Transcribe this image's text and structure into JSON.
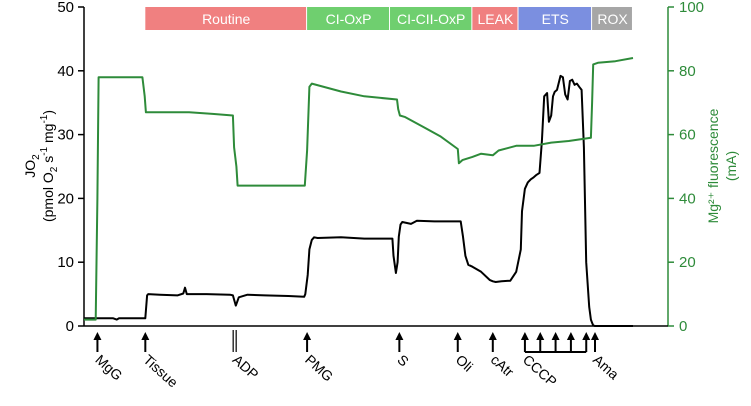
{
  "chart_data": {
    "type": "line",
    "colors": {
      "jo2": "#000000",
      "mg": "#2e8b3a",
      "left_axis": "#000000",
      "right_axis": "#2e8b3a"
    },
    "x_range": [
      0,
      100
    ],
    "left_axis": {
      "label_line1": "JO",
      "label_sub1": "2",
      "label_line2": "(pmol O",
      "label_sub2": "2",
      "label_line2b": " s",
      "label_sup1": "-1",
      "label_line2c": " mg",
      "label_sup2": "-1",
      "label_line2d": ")",
      "range": [
        0,
        50
      ],
      "ticks": [
        {
          "value": 0,
          "label": "0"
        },
        {
          "value": 10,
          "label": "10"
        },
        {
          "value": 20,
          "label": "20"
        },
        {
          "value": 30,
          "label": "30"
        },
        {
          "value": 40,
          "label": "40"
        },
        {
          "value": 50,
          "label": "50"
        }
      ]
    },
    "right_axis": {
      "label_line1": "Mg²⁺ fluorescence",
      "label_line2": "(mA)",
      "range": [
        0,
        100
      ],
      "ticks": [
        {
          "value": 0,
          "label": "0"
        },
        {
          "value": 20,
          "label": "20"
        },
        {
          "value": 40,
          "label": "40"
        },
        {
          "value": 60,
          "label": "60"
        },
        {
          "value": 80,
          "label": "80"
        },
        {
          "value": 100,
          "label": "100"
        }
      ]
    },
    "phases": [
      {
        "label": "Routine",
        "start": 10.5,
        "end": 38.2,
        "color": "#f08080"
      },
      {
        "label": "CI-OxP",
        "start": 38.2,
        "end": 52.4,
        "color": "#6fcf6f"
      },
      {
        "label": "CI-CII-OxP",
        "start": 52.4,
        "end": 66.5,
        "color": "#6fcf6f"
      },
      {
        "label": "LEAK",
        "start": 66.5,
        "end": 74.4,
        "color": "#f08080"
      },
      {
        "label": "ETS",
        "start": 74.4,
        "end": 87.0,
        "color": "#7b8fe0"
      },
      {
        "label": "ROX",
        "start": 87.0,
        "end": 94.0,
        "color": "#a6a6a6"
      }
    ],
    "events": [
      {
        "label": "MgG",
        "x": 2.3
      },
      {
        "label": "Tissue",
        "x": 10.5
      },
      {
        "label": "ADP",
        "x": 25.8
      },
      {
        "label": "PMG",
        "x": 38.2
      },
      {
        "label": "S",
        "x": 54.0
      },
      {
        "label": "Oli",
        "x": 64.0
      },
      {
        "label": "cAtr",
        "x": 70.0
      },
      {
        "label": "CCCP",
        "x": 75.5
      },
      {
        "label": "Ama",
        "x": 87.5
      }
    ],
    "series": [
      {
        "axis": "left",
        "x": [
          0,
          5,
          5.6,
          6,
          10.5,
          10.8,
          11,
          13,
          16,
          17,
          17.3,
          17.6,
          21,
          25,
          25.5,
          26.0,
          26.5,
          28,
          31,
          35,
          37.7,
          37.9,
          38.3,
          38.6,
          39,
          39.4,
          40,
          44,
          48,
          52.8,
          53.0,
          53.4,
          53.7,
          53.9,
          54.2,
          54.5,
          55,
          56,
          57,
          60,
          64.5,
          64.9,
          65.3,
          65.8,
          66.5,
          68,
          69.5,
          70.0,
          70.5,
          71.5,
          73,
          74.0,
          74.8,
          75.0,
          75.5,
          76.0,
          76.5,
          77.0,
          77.5,
          78.0,
          78.4,
          78.8,
          79.3,
          79.6,
          80.0,
          80.3,
          80.6,
          81.0,
          81.6,
          82.0,
          82.4,
          82.8,
          83.2,
          83.6,
          84.0,
          84.4,
          84.8,
          85.2,
          85.6,
          86.0,
          86.5,
          86.8,
          87.0,
          87.2,
          87.5,
          87.8,
          88.0,
          88.3,
          88.6,
          89.0,
          89.5,
          90.5,
          92.0,
          94.0
        ],
        "y": [
          1.2,
          1.2,
          1.0,
          1.2,
          1.2,
          4.8,
          5.0,
          4.9,
          4.8,
          5.1,
          6.0,
          5.0,
          5.0,
          4.9,
          4.8,
          3.2,
          4.5,
          4.9,
          4.8,
          4.7,
          4.6,
          5.0,
          8.0,
          12.0,
          13.5,
          13.9,
          13.8,
          13.9,
          13.7,
          13.7,
          11.0,
          8.3,
          10.0,
          14.0,
          15.9,
          16.3,
          16.2,
          16.0,
          16.5,
          16.4,
          16.4,
          14.0,
          11.0,
          9.6,
          9.3,
          8.5,
          7.2,
          7.0,
          6.9,
          7.0,
          7.1,
          8.5,
          12.0,
          18.0,
          21.5,
          22.5,
          23.0,
          23.3,
          23.7,
          24.0,
          29.0,
          36.0,
          36.5,
          32.0,
          33.0,
          36.0,
          36.7,
          37.0,
          39.2,
          39.0,
          36.3,
          35.5,
          38.4,
          38.6,
          37.8,
          38.0,
          37.5,
          37.0,
          28.0,
          10.0,
          3.0,
          1.0,
          0.5,
          0.1,
          0.0,
          0.0,
          0.0,
          0.0,
          0.0,
          0.0,
          0.0,
          0.0,
          0.0,
          0.0
        ]
      },
      {
        "axis": "right",
        "x": [
          0,
          2.0,
          2.3,
          2.5,
          6,
          10.0,
          10.4,
          10.6,
          14,
          18,
          22,
          25.5,
          25.7,
          26.1,
          26.3,
          27,
          30,
          34,
          37.8,
          38.2,
          38.6,
          39,
          44,
          48,
          53.6,
          53.8,
          54.1,
          55,
          58,
          61,
          64.0,
          64.2,
          64.8,
          66.5,
          68,
          70,
          71,
          74,
          77,
          80,
          83,
          86.8,
          87.0,
          87.2,
          88,
          91,
          94
        ],
        "y": [
          2,
          2,
          40,
          78,
          78,
          78,
          72,
          67,
          67,
          67,
          66.5,
          66,
          56,
          50,
          44,
          44,
          44,
          44,
          44,
          55,
          75,
          76,
          73.5,
          72,
          71,
          68,
          66,
          65.5,
          62.5,
          59.5,
          55.5,
          51,
          52,
          53,
          54,
          53.5,
          55,
          56.5,
          56.5,
          57.5,
          58.0,
          59,
          70,
          82,
          82.5,
          83,
          84
        ]
      }
    ]
  }
}
